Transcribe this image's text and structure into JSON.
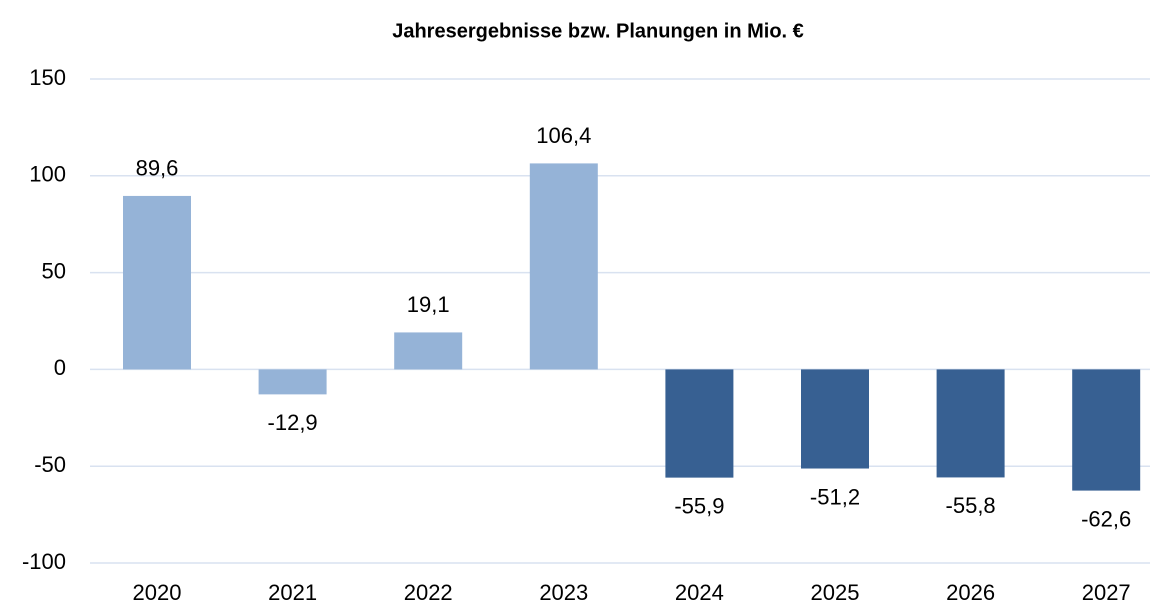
{
  "chart_data": {
    "type": "bar",
    "title": "Jahresergebnisse bzw. Planungen in Mio. €",
    "categories": [
      "2020",
      "2021",
      "2022",
      "2023",
      "2024",
      "2025",
      "2026",
      "2027"
    ],
    "values": [
      89.6,
      -12.9,
      19.1,
      106.4,
      -55.9,
      -51.2,
      -55.8,
      -62.6
    ],
    "value_labels": [
      "89,6",
      "-12,9",
      "19,1",
      "106,4",
      "-55,9",
      "-51,2",
      "-55,8",
      "-62,6"
    ],
    "colors": [
      "#95b3d7",
      "#95b3d7",
      "#95b3d7",
      "#95b3d7",
      "#376092",
      "#376092",
      "#376092",
      "#376092"
    ],
    "ylim": [
      -100,
      150
    ],
    "yticks": [
      -100,
      -50,
      0,
      50,
      100,
      150
    ],
    "grid": true
  }
}
